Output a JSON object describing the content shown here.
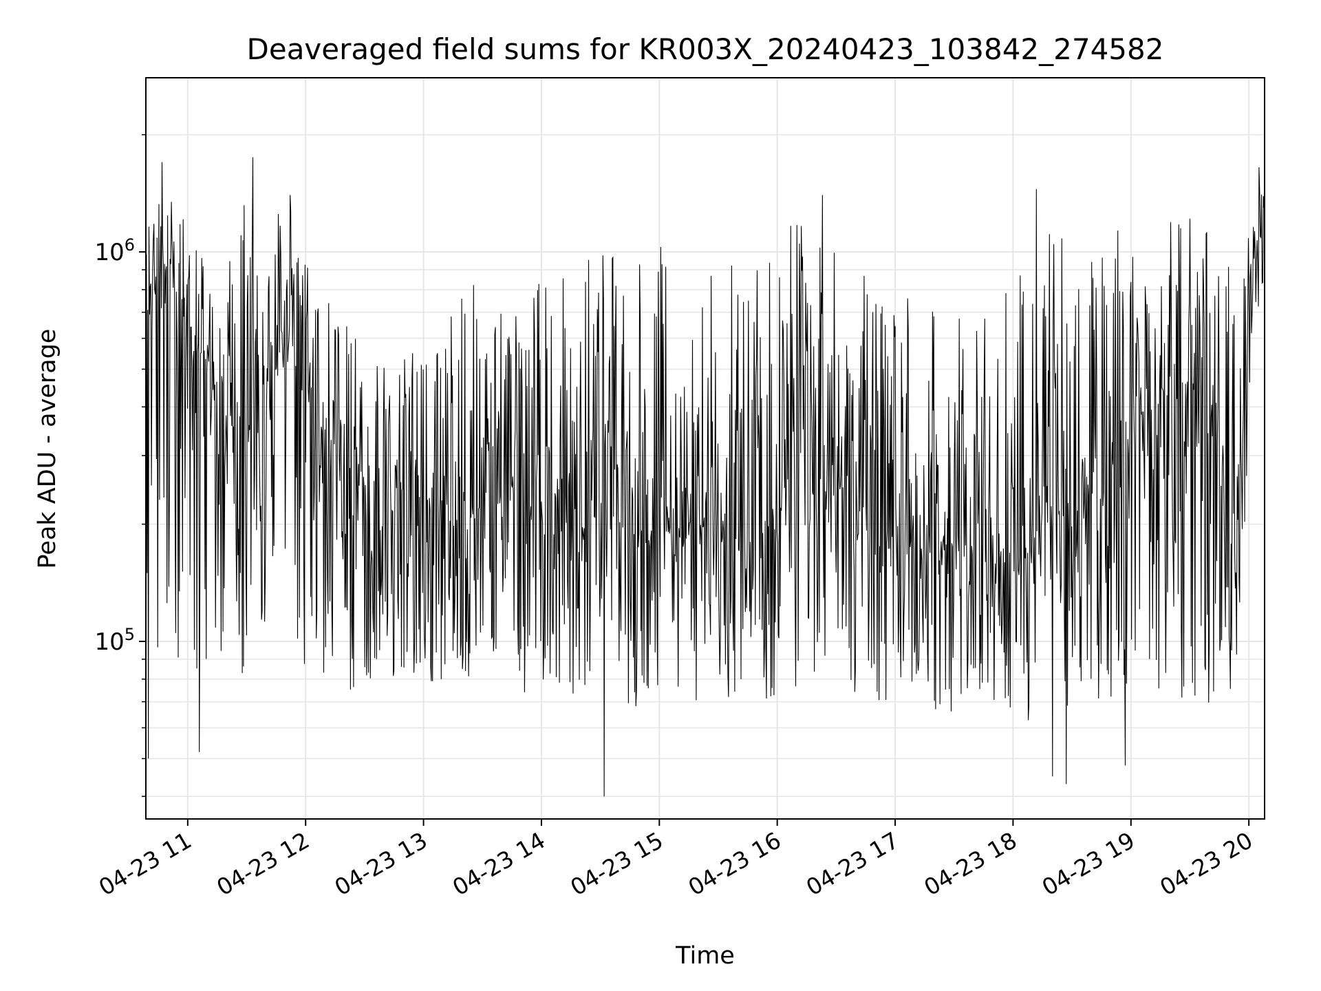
{
  "chart_data": {
    "type": "line",
    "title": "Deaveraged field sums for KR003X_20240423_103842_274582",
    "xlabel": "Time",
    "ylabel": "Peak ADU - average",
    "x_range": [
      "04-23 10:38:42",
      "04-23 20:08"
    ],
    "y_scale": "log",
    "ylim": [
      35000,
      2800000
    ],
    "grid": true,
    "line_color": "#000000",
    "x_tick_labels": [
      "04-23 11",
      "04-23 12",
      "04-23 13",
      "04-23 14",
      "04-23 15",
      "04-23 16",
      "04-23 17",
      "04-23 18",
      "04-23 19",
      "04-23 20"
    ],
    "y_tick_labels": [
      {
        "base": "10",
        "exp": "5",
        "value": 100000
      },
      {
        "base": "10",
        "exp": "6",
        "value": 1000000
      }
    ],
    "series": [
      {
        "x": [
          "10:38",
          "10:45",
          "10:55",
          "11:05",
          "11:10",
          "11:15",
          "11:25",
          "11:35",
          "11:45",
          "11:52",
          "12:00",
          "12:10",
          "12:20",
          "12:30",
          "12:45",
          "13:00",
          "13:15",
          "13:30",
          "13:45",
          "14:00",
          "14:15",
          "14:30",
          "14:45",
          "15:00",
          "15:10",
          "15:20",
          "15:30",
          "15:45",
          "16:00",
          "16:10",
          "16:20",
          "16:30",
          "16:45",
          "17:00",
          "17:15",
          "17:30",
          "17:45",
          "18:00",
          "18:15",
          "18:30",
          "18:45",
          "19:00",
          "19:15",
          "19:30",
          "19:45",
          "19:55",
          "20:00",
          "20:08"
        ],
        "values": [
          700000,
          1000000,
          750000,
          550000,
          480000,
          400000,
          380000,
          420000,
          500000,
          560000,
          440000,
          320000,
          300000,
          250000,
          250000,
          230000,
          220000,
          220000,
          230000,
          200000,
          200000,
          210000,
          200000,
          190000,
          190000,
          200000,
          190000,
          180000,
          200000,
          300000,
          350000,
          300000,
          220000,
          180000,
          170000,
          180000,
          160000,
          160000,
          200000,
          200000,
          250000,
          350000,
          420000,
          420000,
          300000,
          250000,
          700000,
          1300000
        ],
        "y_low": [
          95000,
          90000,
          90000,
          85000,
          80000,
          80000,
          80000,
          85000,
          90000,
          90000,
          85000,
          80000,
          75000,
          75000,
          70000,
          70000,
          70000,
          70000,
          70000,
          68000,
          68000,
          68000,
          68000,
          68000,
          68000,
          68000,
          68000,
          68000,
          68000,
          75000,
          75000,
          72000,
          68000,
          65000,
          65000,
          65000,
          65000,
          62000,
          60000,
          60000,
          62000,
          68000,
          70000,
          70000,
          68000,
          65000,
          400000,
          900000
        ],
        "y_high": [
          1500000,
          1500000,
          1300000,
          1300000,
          1200000,
          1300000,
          1400000,
          1300000,
          1300000,
          1300000,
          1000000,
          800000,
          650000,
          600000,
          550000,
          650000,
          800000,
          900000,
          750000,
          850000,
          900000,
          1000000,
          1000000,
          1100000,
          1050000,
          1000000,
          1050000,
          900000,
          1100000,
          1300000,
          1300000,
          1300000,
          1100000,
          900000,
          700000,
          800000,
          750000,
          1000000,
          1300000,
          1100000,
          1000000,
          1300000,
          1300000,
          1250000,
          1100000,
          1000000,
          1300000,
          1600000
        ],
        "spikes_up": [
          [
            "10:47",
            1700000
          ],
          [
            "11:33",
            1750000
          ],
          [
            "11:52",
            1400000
          ],
          [
            "16:23",
            1400000
          ],
          [
            "18:12",
            1450000
          ],
          [
            "20:05",
            1650000
          ]
        ],
        "spikes_down": [
          [
            "10:40",
            50000
          ],
          [
            "11:06",
            52000
          ],
          [
            "14:32",
            40000
          ],
          [
            "18:20",
            45000
          ],
          [
            "18:27",
            43000
          ],
          [
            "18:57",
            48000
          ]
        ]
      }
    ]
  }
}
